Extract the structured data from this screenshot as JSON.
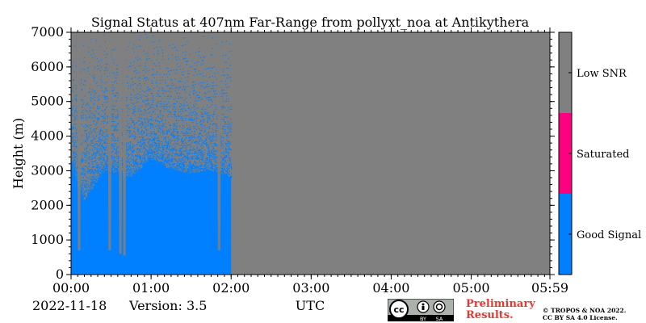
{
  "chart_data": {
    "type": "heatmap",
    "title": "Signal Status at 407nm Far-Range from pollyxt_noa at Antikythera",
    "xlabel": "UTC",
    "ylabel": "Height (m)",
    "x_ticks": [
      "00:00",
      "01:00",
      "02:00",
      "03:00",
      "04:00",
      "05:00",
      "05:59"
    ],
    "x_tick_minutes": [
      0,
      60,
      120,
      180,
      240,
      300,
      359
    ],
    "xlim_minutes": [
      0,
      359
    ],
    "y_ticks": [
      0,
      1000,
      2000,
      3000,
      4000,
      5000,
      6000,
      7000
    ],
    "ylim": [
      0,
      7000
    ],
    "categories": [
      {
        "label": "Good Signal",
        "color": "#0080ff"
      },
      {
        "label": "Saturated",
        "color": "#ff0080"
      },
      {
        "label": "Low SNR",
        "color": "#808080"
      }
    ],
    "data_end_minute": 120,
    "good_signal_profile_m": [
      [
        0,
        3200
      ],
      [
        10,
        2100
      ],
      [
        25,
        3000
      ],
      [
        45,
        2800
      ],
      [
        60,
        3300
      ],
      [
        75,
        3000
      ],
      [
        90,
        2900
      ],
      [
        105,
        3000
      ],
      [
        120,
        2800
      ]
    ],
    "low_snr_columns_minutes": [
      6,
      29,
      37,
      40,
      111
    ]
  },
  "footer": {
    "date": "2022-11-18",
    "version": "Version: 3.5",
    "preliminary_line1": "Preliminary",
    "preliminary_line2": "Results.",
    "copyright_line1": "© TROPOS & NOA 2022.",
    "copyright_line2": "CC BY SA 4.0 License.",
    "cc_text": "cc",
    "by_text": "BY",
    "sa_text": "SA"
  },
  "colors": {
    "preliminary": "#e8372f",
    "low_snr": "#808080",
    "good_signal": "#0080ff",
    "saturated": "#ff0080"
  }
}
